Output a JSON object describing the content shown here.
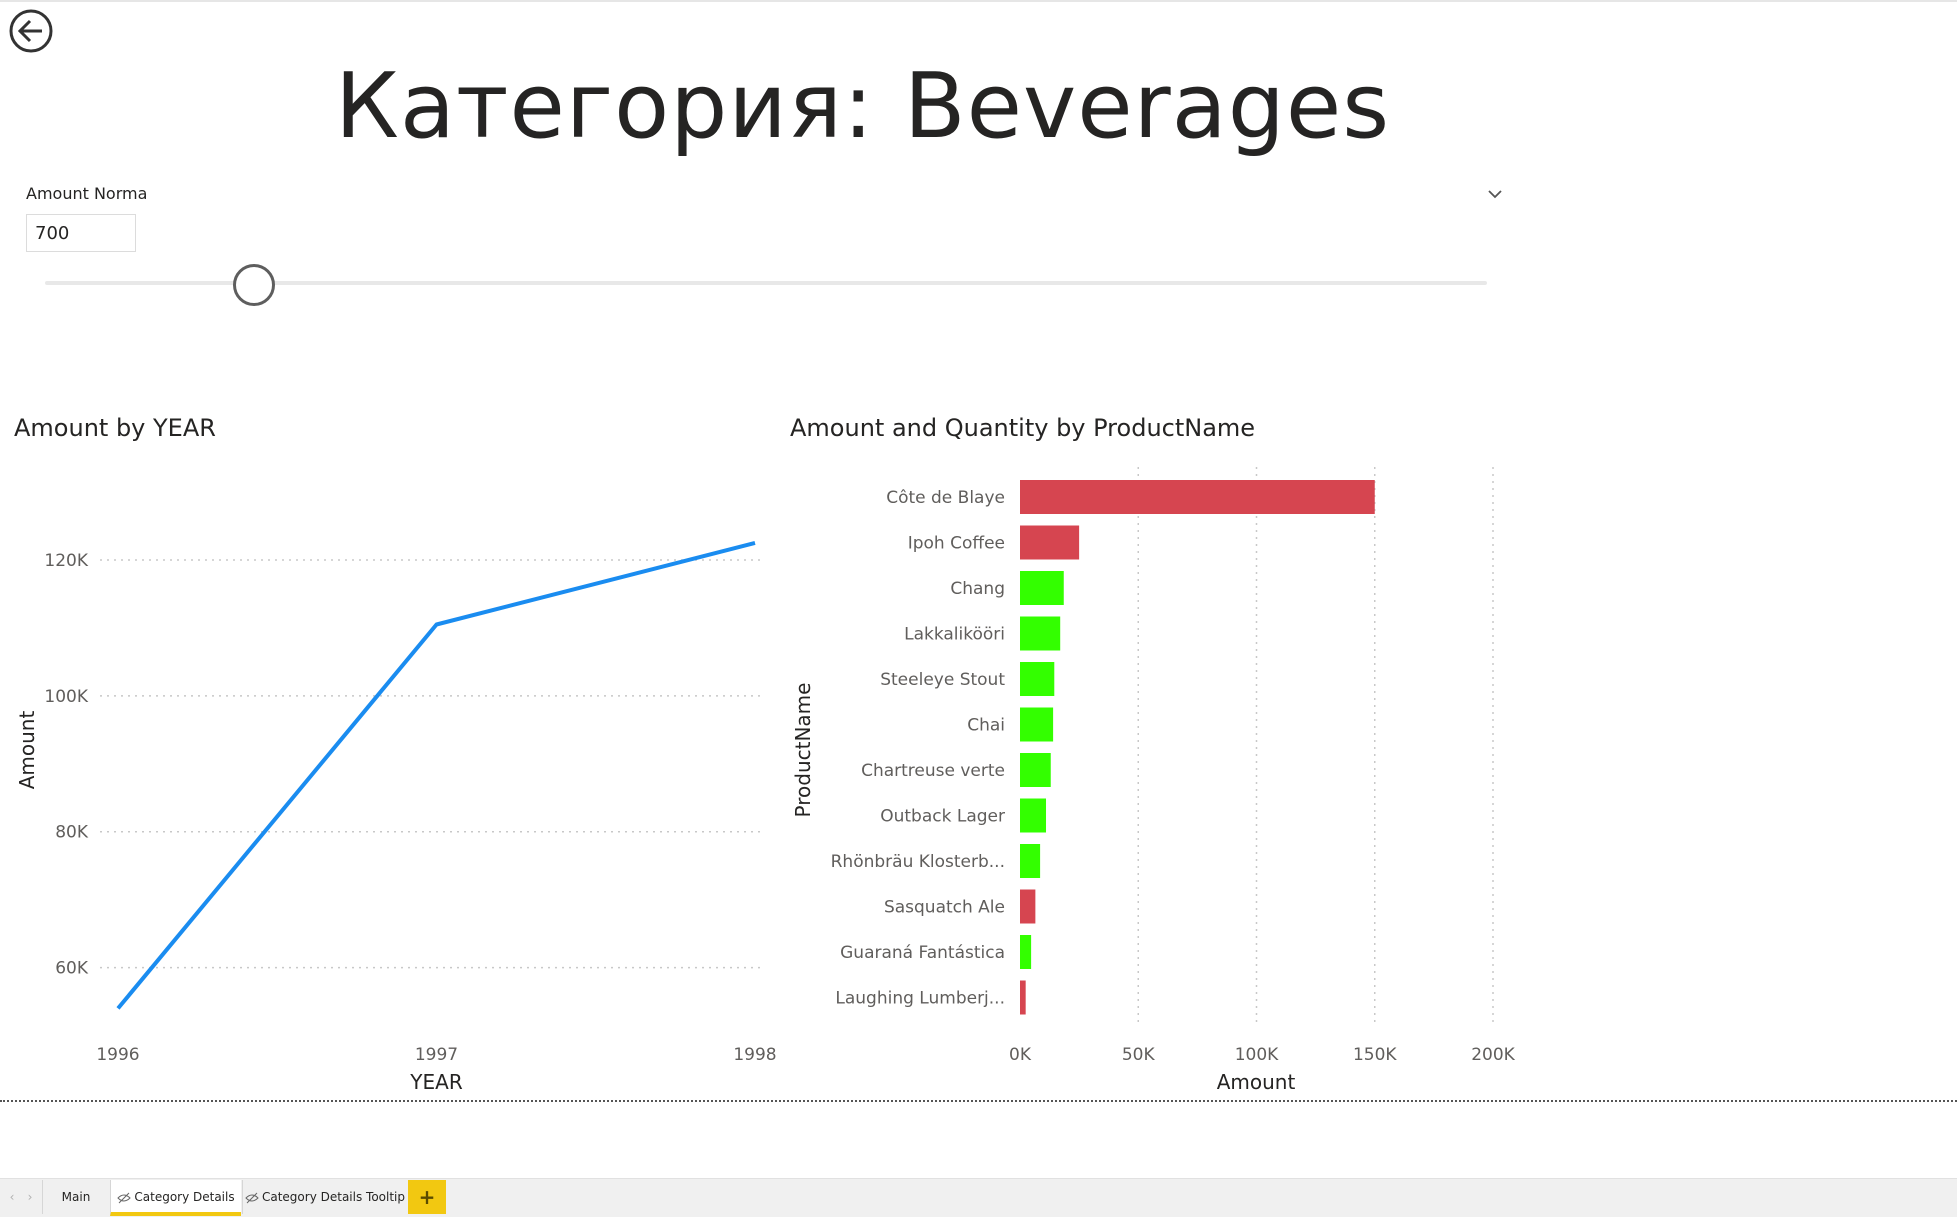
{
  "page": {
    "title": "Категория: Beverages",
    "back_icon": "back-arrow-icon"
  },
  "slicer": {
    "title": "Amount Norma",
    "value": "700",
    "chevron_icon": "chevron-down-icon",
    "slider_fraction": 0.143
  },
  "line_chart": {
    "title": "Amount by YEAR"
  },
  "bar_chart": {
    "title": "Amount and Quantity by ProductName"
  },
  "colors": {
    "line": "#1a8cf0",
    "above_norm": "#d64550",
    "below_norm": "#33ff00",
    "grid": "#c8c8c8",
    "accent": "#f2c811"
  },
  "chart_data": [
    {
      "type": "line",
      "title": "Amount by YEAR",
      "xlabel": "YEAR",
      "ylabel": "Amount",
      "x": [
        "1996",
        "1997",
        "1998"
      ],
      "series": [
        {
          "values": [
            54000,
            110500,
            122500
          ]
        }
      ],
      "xlim": [
        1996,
        1998
      ],
      "ylim": [
        52000,
        130000
      ],
      "yticks": [
        60000,
        80000,
        100000,
        120000
      ],
      "ytick_labels": [
        "60K",
        "80K",
        "100K",
        "120K"
      ],
      "grid": "horizontal-dotted"
    },
    {
      "type": "bar",
      "orientation": "horizontal",
      "title": "Amount and Quantity by ProductName",
      "xlabel": "Amount",
      "ylabel": "ProductName",
      "categories": [
        "Côte de Blaye",
        "Ipoh Coffee",
        "Chang",
        "Lakkalikööri",
        "Steeleye Stout",
        "Chai",
        "Chartreuse verte",
        "Outback Lager",
        "Rhönbräu Klosterb...",
        "Sasquatch Ale",
        "Guaraná Fantástica",
        "Laughing Lumberj..."
      ],
      "values": [
        150000,
        25000,
        18500,
        17000,
        14500,
        14000,
        13000,
        11000,
        8500,
        6500,
        4700,
        2400
      ],
      "bar_colors": [
        "#d64550",
        "#d64550",
        "#33ff00",
        "#33ff00",
        "#33ff00",
        "#33ff00",
        "#33ff00",
        "#33ff00",
        "#33ff00",
        "#d64550",
        "#33ff00",
        "#d64550"
      ],
      "xlim": [
        0,
        200000
      ],
      "xticks": [
        0,
        50000,
        100000,
        150000,
        200000
      ],
      "xtick_labels": [
        "0K",
        "50K",
        "100K",
        "150K",
        "200K"
      ],
      "grid": "vertical-dotted"
    }
  ],
  "tabs": {
    "prev_icon": "‹",
    "next_icon": "›",
    "items": [
      {
        "label": "Main",
        "icon": ""
      },
      {
        "label": "Category Details",
        "icon": "hidden-eye-icon",
        "active": true
      },
      {
        "label": "Category Details Tooltip",
        "icon": "hidden-eye-icon"
      }
    ],
    "add_label": "+"
  }
}
